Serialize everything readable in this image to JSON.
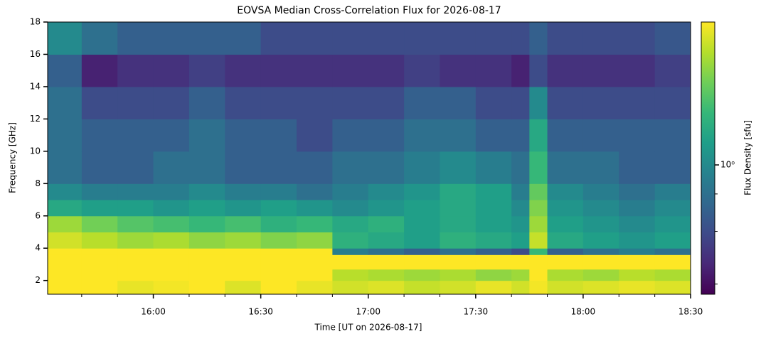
{
  "chart_data": {
    "type": "heatmap",
    "title": "EOVSA Median Cross-Correlation Flux for 2026-08-17",
    "x_label": "Time [UT on 2026-08-17]",
    "y_label": "Frequency [GHz]",
    "colorbar_label": "Flux Density [sfu]",
    "colormap": "viridis",
    "cscale": "log",
    "clim": [
      0.37,
      3
    ],
    "cticks": [
      {
        "value": 1,
        "label": "10⁰"
      }
    ],
    "cticks_minor": [
      0.4,
      0.6,
      0.8
    ],
    "xlim": [
      930.5,
      1110
    ],
    "xticks": [
      {
        "value": 960,
        "label": "16:00"
      },
      {
        "value": 990,
        "label": "16:30"
      },
      {
        "value": 1020,
        "label": "17:00"
      },
      {
        "value": 1050,
        "label": "17:30"
      },
      {
        "value": 1080,
        "label": "18:00"
      },
      {
        "value": 1110,
        "label": "18:30"
      }
    ],
    "xticks_minor": [
      940,
      950,
      970,
      980,
      1000,
      1010,
      1030,
      1040,
      1060,
      1070,
      1090,
      1100
    ],
    "ylim": [
      1.15,
      18
    ],
    "yticks": [
      2,
      4,
      6,
      8,
      10,
      12,
      14,
      16,
      18
    ],
    "x_bins": [
      930.5,
      940,
      950,
      960,
      970,
      980,
      990,
      1000,
      1010,
      1020,
      1030,
      1040,
      1050,
      1060,
      1065,
      1070,
      1080,
      1090,
      1100,
      1110
    ],
    "y_bins": [
      1.15,
      2,
      2.7,
      3.6,
      4,
      5,
      6,
      7,
      8,
      10,
      12,
      14,
      16,
      18
    ],
    "z": [
      [
        3,
        3,
        2.8,
        2.9,
        3,
        2.7,
        3,
        2.8,
        2.6,
        2.7,
        2.5,
        2.6,
        2.8,
        2.6,
        2.9,
        2.6,
        2.7,
        2.8,
        2.7
      ],
      [
        3,
        3,
        3,
        3,
        3,
        3,
        3,
        3,
        2.4,
        2.3,
        2.2,
        2.3,
        2.1,
        2.2,
        3,
        2.3,
        2.2,
        2.4,
        2.3
      ],
      [
        3,
        3,
        3,
        3,
        3,
        3,
        3,
        3,
        3,
        3,
        3,
        3,
        3,
        3,
        3,
        3,
        3,
        3,
        3
      ],
      [
        3,
        3,
        3,
        3,
        3,
        3,
        3,
        3,
        0.9,
        0.8,
        0.7,
        0.8,
        0.7,
        0.6,
        1.5,
        0.7,
        0.8,
        0.9,
        0.8
      ],
      [
        2.6,
        2.4,
        2.2,
        2.3,
        2.1,
        2.2,
        2.0,
        2.1,
        1.4,
        1.3,
        1.2,
        1.4,
        1.3,
        1.2,
        2.5,
        1.3,
        1.2,
        1.1,
        1.2
      ],
      [
        2.2,
        1.9,
        1.7,
        1.6,
        1.5,
        1.6,
        1.4,
        1.5,
        1.3,
        1.4,
        1.2,
        1.3,
        1.2,
        1.1,
        2.2,
        1.2,
        1.1,
        1.0,
        1.1
      ],
      [
        1.3,
        1.2,
        1.2,
        1.1,
        1.2,
        1.1,
        1.2,
        1.1,
        1.0,
        1.1,
        1.2,
        1.3,
        1.2,
        1.0,
        2.0,
        1.1,
        1.0,
        0.9,
        1.0
      ],
      [
        1.0,
        0.9,
        0.9,
        0.9,
        1.0,
        0.9,
        0.9,
        0.8,
        0.9,
        1.0,
        1.1,
        1.3,
        1.2,
        0.9,
        1.8,
        1.0,
        0.9,
        0.8,
        0.9
      ],
      [
        0.8,
        0.7,
        0.7,
        0.8,
        0.8,
        0.7,
        0.7,
        0.7,
        0.8,
        0.8,
        0.9,
        1.0,
        0.9,
        0.8,
        1.5,
        0.8,
        0.8,
        0.7,
        0.7
      ],
      [
        0.8,
        0.7,
        0.7,
        0.7,
        0.8,
        0.7,
        0.7,
        0.6,
        0.7,
        0.7,
        0.8,
        0.8,
        0.7,
        0.7,
        1.3,
        0.7,
        0.7,
        0.7,
        0.7
      ],
      [
        0.8,
        0.6,
        0.6,
        0.6,
        0.7,
        0.6,
        0.6,
        0.6,
        0.6,
        0.6,
        0.7,
        0.7,
        0.6,
        0.6,
        1.0,
        0.6,
        0.6,
        0.6,
        0.6
      ],
      [
        0.7,
        0.45,
        0.5,
        0.5,
        0.55,
        0.5,
        0.5,
        0.5,
        0.5,
        0.5,
        0.55,
        0.5,
        0.5,
        0.45,
        0.6,
        0.5,
        0.5,
        0.5,
        0.55
      ],
      [
        1.0,
        0.8,
        0.7,
        0.7,
        0.7,
        0.7,
        0.6,
        0.6,
        0.6,
        0.6,
        0.6,
        0.6,
        0.6,
        0.6,
        0.7,
        0.6,
        0.6,
        0.6,
        0.65
      ]
    ]
  }
}
